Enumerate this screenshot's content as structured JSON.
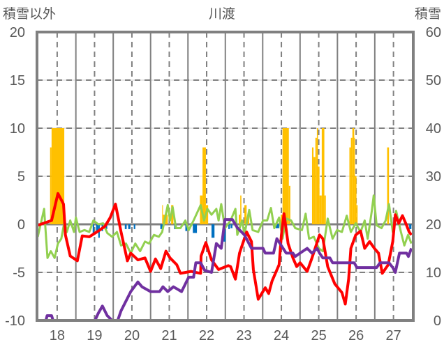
{
  "chart_data": {
    "type": "line",
    "title": "川渡",
    "ylabel_left": "積雪以外",
    "ylabel_right": "積雪",
    "xlim": [
      17.46,
      27.53
    ],
    "ylim_left": [
      -10,
      20
    ],
    "ylim_right": [
      0,
      60
    ],
    "x_ticks": [
      "18",
      "19",
      "20",
      "21",
      "22",
      "23",
      "24",
      "25",
      "26",
      "27"
    ],
    "y_left_ticks": [
      "20",
      "15",
      "10",
      "5",
      "0",
      "-5",
      "-10"
    ],
    "y_right_ticks": [
      "60",
      "50",
      "40",
      "30",
      "20",
      "10",
      "0"
    ],
    "grid": true,
    "colors": {
      "red": "#FF0000",
      "green": "#92D050",
      "purple": "#7030A0",
      "orange": "#FFC000",
      "blue": "#0070C0",
      "axis": "#808080",
      "text": "#595959"
    },
    "series": [
      {
        "name": "orange-bars",
        "kind": "bar",
        "axis": "left",
        "color": "#FFC000",
        "bars": [
          [
            17.81,
            17.85,
            8
          ],
          [
            17.85,
            18.19,
            10
          ],
          [
            20.81,
            20.83,
            2
          ],
          [
            20.83,
            20.96,
            1
          ],
          [
            21.05,
            21.11,
            2
          ],
          [
            21.82,
            21.89,
            3
          ],
          [
            21.89,
            21.98,
            8
          ],
          [
            21.98,
            22.04,
            2
          ],
          [
            22.86,
            22.9,
            1
          ],
          [
            22.9,
            22.93,
            3
          ],
          [
            23.01,
            23.07,
            2
          ],
          [
            23.1,
            23.14,
            1
          ],
          [
            23.98,
            24.03,
            1
          ],
          [
            24.03,
            24.2,
            10
          ],
          [
            24.2,
            24.24,
            4
          ],
          [
            24.82,
            24.86,
            8
          ],
          [
            24.86,
            24.91,
            7
          ],
          [
            24.91,
            24.95,
            9
          ],
          [
            24.95,
            24.98,
            10
          ],
          [
            24.98,
            25.02,
            6
          ],
          [
            25.02,
            25.08,
            3
          ],
          [
            25.08,
            25.15,
            10
          ],
          [
            25.15,
            25.19,
            3
          ],
          [
            25.82,
            25.86,
            8
          ],
          [
            25.86,
            25.9,
            9
          ],
          [
            25.9,
            25.95,
            10
          ],
          [
            25.95,
            25.97,
            9
          ],
          [
            25.97,
            26.01,
            5
          ],
          [
            26.01,
            26.04,
            2
          ],
          [
            26.83,
            26.88,
            8
          ]
        ]
      },
      {
        "name": "blue-bars",
        "kind": "bar",
        "axis": "left",
        "color": "#0070C0",
        "bars": [
          [
            18.95,
            18.99,
            -1.1
          ],
          [
            19.04,
            19.1,
            -0.7
          ],
          [
            19.1,
            19.14,
            -1.4
          ],
          [
            19.19,
            19.23,
            -0.7
          ],
          [
            19.28,
            19.34,
            -0.5
          ],
          [
            19.81,
            19.86,
            -0.5
          ],
          [
            19.9,
            19.96,
            -0.5
          ],
          [
            20.05,
            20.09,
            -0.5
          ],
          [
            20.76,
            20.83,
            -0.5
          ],
          [
            21.13,
            21.2,
            -0.5
          ],
          [
            21.43,
            21.48,
            -0.7
          ],
          [
            21.63,
            21.74,
            -0.9
          ],
          [
            22.13,
            22.21,
            -1.4
          ],
          [
            22.45,
            22.51,
            -1.8
          ],
          [
            22.58,
            22.62,
            -0.5
          ],
          [
            22.64,
            22.69,
            -0.4
          ],
          [
            23.85,
            23.94,
            -0.4
          ],
          [
            27.42,
            27.48,
            -0.5
          ]
        ]
      },
      {
        "name": "red-line",
        "kind": "line",
        "axis": "left",
        "color": "#FF0000",
        "points": [
          [
            17.48,
            -0.1
          ],
          [
            17.85,
            0.4
          ],
          [
            18.02,
            3.2
          ],
          [
            18.17,
            2.1
          ],
          [
            18.22,
            -1.1
          ],
          [
            18.35,
            -3.3
          ],
          [
            18.54,
            -3.8
          ],
          [
            18.67,
            -1.2
          ],
          [
            18.86,
            -1.3
          ],
          [
            19.1,
            -0.7
          ],
          [
            19.28,
            -0.2
          ],
          [
            19.42,
            0.7
          ],
          [
            19.56,
            2.1
          ],
          [
            19.71,
            -0.8
          ],
          [
            19.88,
            -3.8
          ],
          [
            19.97,
            -3.0
          ],
          [
            20.16,
            -3.7
          ],
          [
            20.35,
            -3.5
          ],
          [
            20.5,
            -4.9
          ],
          [
            20.63,
            -3.6
          ],
          [
            20.77,
            -4.6
          ],
          [
            20.91,
            -2.8
          ],
          [
            21.02,
            -3.5
          ],
          [
            21.2,
            -4.2
          ],
          [
            21.3,
            -5.1
          ],
          [
            21.58,
            -4.9
          ],
          [
            21.84,
            -5.1
          ],
          [
            21.85,
            -3.3
          ],
          [
            21.98,
            -1.9
          ],
          [
            22.13,
            -3.7
          ],
          [
            22.32,
            -4.7
          ],
          [
            22.58,
            -4.3
          ],
          [
            22.64,
            -4.4
          ],
          [
            22.77,
            -5.7
          ],
          [
            22.88,
            -3.0
          ],
          [
            23.07,
            -0.8
          ],
          [
            23.2,
            -1.8
          ],
          [
            23.25,
            -4.7
          ],
          [
            23.38,
            -7.8
          ],
          [
            23.57,
            -6.6
          ],
          [
            23.66,
            -7.2
          ],
          [
            23.75,
            -5.9
          ],
          [
            23.94,
            -4.2
          ],
          [
            24.0,
            -1.1
          ],
          [
            24.07,
            1.1
          ],
          [
            24.18,
            -2.0
          ],
          [
            24.31,
            -3.5
          ],
          [
            24.41,
            -4.4
          ],
          [
            24.5,
            -4.0
          ],
          [
            24.69,
            -4.9
          ],
          [
            24.82,
            -3.5
          ],
          [
            25.02,
            -1.1
          ],
          [
            25.11,
            -1.5
          ],
          [
            25.24,
            -4.4
          ],
          [
            25.43,
            -6.2
          ],
          [
            25.62,
            -7.1
          ],
          [
            25.71,
            -8.3
          ],
          [
            25.8,
            -5.7
          ],
          [
            25.86,
            -2.5
          ],
          [
            25.99,
            -1.1
          ],
          [
            26.12,
            -0.7
          ],
          [
            26.23,
            -2.5
          ],
          [
            26.36,
            -1.8
          ],
          [
            26.49,
            -2.5
          ],
          [
            26.6,
            -3.0
          ],
          [
            26.7,
            -5.1
          ],
          [
            26.86,
            -4.2
          ],
          [
            26.98,
            -1.8
          ],
          [
            27.05,
            1.0
          ],
          [
            27.14,
            0.1
          ],
          [
            27.24,
            0.9
          ],
          [
            27.35,
            -0.1
          ],
          [
            27.42,
            -0.8
          ],
          [
            27.48,
            -1.1
          ]
        ]
      },
      {
        "name": "green-line",
        "kind": "line",
        "axis": "left",
        "color": "#92D050",
        "points": [
          [
            17.48,
            -1.3
          ],
          [
            17.65,
            1.6
          ],
          [
            17.74,
            -3.5
          ],
          [
            17.83,
            -2.8
          ],
          [
            17.93,
            -3.5
          ],
          [
            18.02,
            -2
          ],
          [
            18.11,
            -1.5
          ],
          [
            18.2,
            0.4
          ],
          [
            18.26,
            -0.8
          ],
          [
            18.35,
            0.4
          ],
          [
            18.45,
            -0.8
          ],
          [
            18.5,
            0.7
          ],
          [
            18.6,
            -0.8
          ],
          [
            18.73,
            -0.6
          ],
          [
            18.86,
            -0.8
          ],
          [
            18.97,
            0.4
          ],
          [
            19.1,
            0
          ],
          [
            19.23,
            0.1
          ],
          [
            19.34,
            -0.9
          ],
          [
            19.47,
            -1.3
          ],
          [
            19.6,
            -0.8
          ],
          [
            19.71,
            -2.2
          ],
          [
            19.84,
            -2
          ],
          [
            19.97,
            -3
          ],
          [
            20.09,
            -2
          ],
          [
            20.22,
            -2.8
          ],
          [
            20.35,
            -1.8
          ],
          [
            20.46,
            -2
          ],
          [
            20.59,
            -1.1
          ],
          [
            20.72,
            -1.3
          ],
          [
            20.81,
            -0.8
          ],
          [
            20.96,
            2.0
          ],
          [
            21.02,
            0.4
          ],
          [
            21.09,
            1.8
          ],
          [
            21.18,
            -0.4
          ],
          [
            21.3,
            -0.4
          ],
          [
            21.43,
            0.4
          ],
          [
            21.52,
            -0.6
          ],
          [
            21.65,
            0.4
          ],
          [
            21.84,
            2.0
          ],
          [
            21.93,
            0.4
          ],
          [
            22.02,
            1.6
          ],
          [
            22.13,
            1
          ],
          [
            22.26,
            1.6
          ],
          [
            22.32,
            0.4
          ],
          [
            22.39,
            2.1
          ],
          [
            22.49,
            -0.4
          ],
          [
            22.64,
            0.4
          ],
          [
            22.77,
            1.6
          ],
          [
            22.82,
            -1.1
          ],
          [
            22.95,
            0.4
          ],
          [
            23.01,
            -1.1
          ],
          [
            23.14,
            1.5
          ],
          [
            23.23,
            -0.6
          ],
          [
            23.38,
            -0.8
          ],
          [
            23.51,
            0.4
          ],
          [
            23.62,
            0.4
          ],
          [
            23.72,
            1.7
          ],
          [
            23.81,
            -0.4
          ],
          [
            23.94,
            0.7
          ],
          [
            24.03,
            -1.5
          ],
          [
            24.13,
            0.6
          ],
          [
            24.26,
            0.4
          ],
          [
            24.37,
            -0.4
          ],
          [
            24.55,
            -0.6
          ],
          [
            24.65,
            1.1
          ],
          [
            24.74,
            -1.5
          ],
          [
            24.87,
            -1.3
          ],
          [
            25.0,
            -2.5
          ],
          [
            25.11,
            -2.8
          ],
          [
            25.24,
            0.6
          ],
          [
            25.37,
            -1.5
          ],
          [
            25.49,
            -0.6
          ],
          [
            25.62,
            -0.8
          ],
          [
            25.75,
            0.9
          ],
          [
            25.86,
            -0.8
          ],
          [
            25.99,
            0.1
          ],
          [
            26.12,
            -0.8
          ],
          [
            26.23,
            0.4
          ],
          [
            26.31,
            -1.5
          ],
          [
            26.42,
            1.4
          ],
          [
            26.47,
            3.0
          ],
          [
            26.55,
            -0.1
          ],
          [
            26.68,
            -0.4
          ],
          [
            26.79,
            0.4
          ],
          [
            26.88,
            2.1
          ],
          [
            26.98,
            -0.8
          ],
          [
            27.07,
            1.4
          ],
          [
            27.2,
            -0.8
          ],
          [
            27.29,
            -2.2
          ],
          [
            27.39,
            -1.1
          ],
          [
            27.48,
            -2
          ]
        ]
      },
      {
        "name": "purple-line",
        "kind": "line",
        "axis": "right",
        "color": "#7030A0",
        "points": [
          [
            17.48,
            0
          ],
          [
            17.7,
            0
          ],
          [
            17.73,
            1
          ],
          [
            17.85,
            1
          ],
          [
            17.89,
            0
          ],
          [
            19.01,
            0
          ],
          [
            19.1,
            1.5
          ],
          [
            19.21,
            3
          ],
          [
            19.34,
            1
          ],
          [
            19.47,
            0
          ],
          [
            19.62,
            0
          ],
          [
            19.71,
            2
          ],
          [
            19.97,
            6
          ],
          [
            20.16,
            8
          ],
          [
            20.27,
            7
          ],
          [
            20.5,
            6
          ],
          [
            20.74,
            6
          ],
          [
            20.83,
            7
          ],
          [
            20.96,
            6
          ],
          [
            21.11,
            7
          ],
          [
            21.33,
            6
          ],
          [
            21.52,
            9
          ],
          [
            21.65,
            9
          ],
          [
            21.71,
            12
          ],
          [
            21.84,
            12
          ],
          [
            21.95,
            10.4
          ],
          [
            22.13,
            10
          ],
          [
            22.26,
            16
          ],
          [
            22.39,
            15
          ],
          [
            22.49,
            21
          ],
          [
            22.69,
            21
          ],
          [
            22.82,
            19.3
          ],
          [
            23.01,
            17.8
          ],
          [
            23.2,
            15
          ],
          [
            23.51,
            15
          ],
          [
            23.57,
            14
          ],
          [
            23.79,
            14
          ],
          [
            23.88,
            17
          ],
          [
            24.13,
            14
          ],
          [
            24.31,
            14
          ],
          [
            24.37,
            13.3
          ],
          [
            24.5,
            14
          ],
          [
            24.69,
            15
          ],
          [
            24.82,
            14
          ],
          [
            24.96,
            15
          ],
          [
            25.02,
            14
          ],
          [
            25.11,
            13
          ],
          [
            25.3,
            13
          ],
          [
            25.37,
            12
          ],
          [
            25.95,
            12
          ],
          [
            26.02,
            11
          ],
          [
            26.55,
            11
          ],
          [
            26.64,
            12
          ],
          [
            26.88,
            12
          ],
          [
            26.98,
            11
          ],
          [
            27.05,
            10
          ],
          [
            27.16,
            14
          ],
          [
            27.35,
            14
          ],
          [
            27.4,
            13.3
          ],
          [
            27.48,
            15
          ]
        ]
      }
    ]
  }
}
